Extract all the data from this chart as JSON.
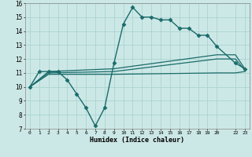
{
  "xlabel": "Humidex (Indice chaleur)",
  "bg_color": "#cce8e6",
  "grid_color": "#aad4d0",
  "line_color": "#1a6b6b",
  "xlim": [
    -0.5,
    23.5
  ],
  "ylim": [
    7,
    16
  ],
  "xtick_positions": [
    0,
    1,
    2,
    3,
    4,
    5,
    6,
    7,
    8,
    9,
    10,
    11,
    12,
    13,
    14,
    15,
    16,
    17,
    18,
    19,
    20,
    22,
    23
  ],
  "xtick_labels": [
    "0",
    "1",
    "2",
    "3",
    "4",
    "5",
    "6",
    "7",
    "8",
    "9",
    "10",
    "11",
    "12",
    "13",
    "14",
    "15",
    "16",
    "17",
    "18",
    "19",
    "20",
    "22",
    "23"
  ],
  "yticks": [
    7,
    8,
    9,
    10,
    11,
    12,
    13,
    14,
    15,
    16
  ],
  "series": [
    {
      "x": [
        0,
        1,
        2,
        3,
        4,
        5,
        6,
        7,
        8,
        9,
        10,
        11,
        12,
        13,
        14,
        15,
        16,
        17,
        18,
        19,
        20,
        22,
        23
      ],
      "y": [
        10.0,
        11.1,
        11.1,
        11.1,
        10.5,
        9.5,
        8.5,
        7.2,
        8.5,
        11.7,
        14.5,
        15.7,
        15.0,
        15.0,
        14.8,
        14.8,
        14.2,
        14.2,
        13.7,
        13.7,
        12.9,
        11.7,
        11.3
      ],
      "marker": "D",
      "markersize": 2.5,
      "linewidth": 1.0
    },
    {
      "x": [
        0,
        2,
        9,
        20,
        22,
        23
      ],
      "y": [
        10.0,
        11.1,
        11.3,
        12.3,
        12.3,
        11.3
      ],
      "marker": null,
      "markersize": 0,
      "linewidth": 0.9
    },
    {
      "x": [
        0,
        2,
        9,
        20,
        22,
        23
      ],
      "y": [
        10.0,
        11.0,
        11.1,
        12.0,
        12.0,
        11.2
      ],
      "marker": null,
      "markersize": 0,
      "linewidth": 0.9
    },
    {
      "x": [
        0,
        2,
        9,
        20,
        22,
        23
      ],
      "y": [
        10.0,
        10.9,
        10.9,
        11.0,
        11.0,
        11.1
      ],
      "marker": null,
      "markersize": 0,
      "linewidth": 0.9
    }
  ]
}
